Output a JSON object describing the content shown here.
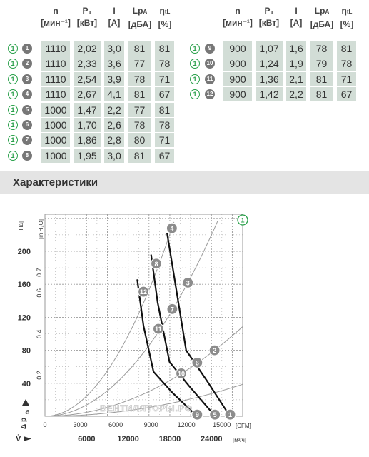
{
  "table": {
    "headers": {
      "n": {
        "top": "n",
        "bottom": "[мин⁻¹]"
      },
      "p1": {
        "top": "P₁",
        "bottom": "[кВт]"
      },
      "i": {
        "top": "I",
        "bottom": "[A]"
      },
      "lpa": {
        "top": "Lp",
        "sub": "A",
        "bottom": "[дБА]"
      },
      "eta": {
        "top": "η",
        "sub": "tL",
        "bottom": "[%]"
      }
    },
    "curve_set_label": "1",
    "left_rows": [
      {
        "point": "1",
        "n": "1110",
        "p1": "2,02",
        "i": "3,0",
        "lpa": "81",
        "eta": "81"
      },
      {
        "point": "2",
        "n": "1110",
        "p1": "2,33",
        "i": "3,6",
        "lpa": "77",
        "eta": "78"
      },
      {
        "point": "3",
        "n": "1110",
        "p1": "2,54",
        "i": "3,9",
        "lpa": "78",
        "eta": "71"
      },
      {
        "point": "4",
        "n": "1110",
        "p1": "2,67",
        "i": "4,1",
        "lpa": "81",
        "eta": "67"
      },
      {
        "point": "5",
        "n": "1000",
        "p1": "1,47",
        "i": "2,2",
        "lpa": "77",
        "eta": "81"
      },
      {
        "point": "6",
        "n": "1000",
        "p1": "1,70",
        "i": "2,6",
        "lpa": "78",
        "eta": "78"
      },
      {
        "point": "7",
        "n": "1000",
        "p1": "1,86",
        "i": "2,8",
        "lpa": "80",
        "eta": "71"
      },
      {
        "point": "8",
        "n": "1000",
        "p1": "1,95",
        "i": "3,0",
        "lpa": "81",
        "eta": "67"
      }
    ],
    "right_rows": [
      {
        "point": "9",
        "n": "900",
        "p1": "1,07",
        "i": "1,6",
        "lpa": "78",
        "eta": "81"
      },
      {
        "point": "10",
        "n": "900",
        "p1": "1,24",
        "i": "1,9",
        "lpa": "79",
        "eta": "78"
      },
      {
        "point": "11",
        "n": "900",
        "p1": "1,36",
        "i": "2,1",
        "lpa": "81",
        "eta": "71"
      },
      {
        "point": "12",
        "n": "900",
        "p1": "1,42",
        "i": "2,2",
        "lpa": "81",
        "eta": "67"
      }
    ]
  },
  "section": {
    "title": "Характеристики"
  },
  "chart": {
    "badge": "1",
    "unit_pa": "[Па]",
    "unit_inh2o": "[in H₂O]",
    "unit_cfm": "[CFM]",
    "unit_m3h": "[м³/ч]",
    "y_axis_label": "Δ p",
    "y_axis_sub": "fa",
    "x_axis_label": "V̇",
    "watermark": "ВЕНТИЛЯТОРЫ.РФ",
    "colors": {
      "grid": "#999999",
      "speed_line": "#111111",
      "system_curve": "#9a9a9a",
      "marker": "#8c8c8c",
      "badge": "#29a04a"
    }
  },
  "chart_data": {
    "type": "line",
    "title": "",
    "x_axis": {
      "unit": "м³/ч",
      "range": [
        0,
        28500
      ],
      "ticks": [
        6000,
        12000,
        18000,
        24000
      ]
    },
    "x_axis_secondary": {
      "unit": "CFM",
      "ticks": [
        0,
        3000,
        6000,
        9000,
        12000,
        15000
      ]
    },
    "y_axis": {
      "unit": "Па",
      "range": [
        0,
        245
      ],
      "ticks": [
        40,
        80,
        120,
        160,
        200
      ]
    },
    "y_axis_secondary": {
      "unit": "in H2O",
      "ticks": [
        0.2,
        0.4,
        0.6,
        0.7
      ]
    },
    "grid": true,
    "series": [
      {
        "name": "1110",
        "points": [
          [
            17600,
            222
          ],
          [
            18650,
            168
          ],
          [
            20350,
            80
          ],
          [
            23350,
            43
          ],
          [
            26600,
            1
          ]
        ]
      },
      {
        "name": "1000",
        "points": [
          [
            15300,
            196
          ],
          [
            16250,
            138
          ],
          [
            17950,
            66
          ],
          [
            20750,
            37
          ],
          [
            24450,
            1
          ]
        ]
      },
      {
        "name": "900",
        "points": [
          [
            13300,
            166
          ],
          [
            14200,
            110
          ],
          [
            15650,
            54
          ],
          [
            18450,
            28
          ],
          [
            21800,
            1
          ]
        ]
      }
    ],
    "operating_points": [
      {
        "label": "4",
        "x": 18300,
        "y": 228
      },
      {
        "label": "3",
        "x": 20600,
        "y": 162
      },
      {
        "label": "2",
        "x": 24450,
        "y": 80
      },
      {
        "label": "1",
        "x": 26700,
        "y": 2
      },
      {
        "label": "8",
        "x": 16050,
        "y": 185
      },
      {
        "label": "7",
        "x": 18350,
        "y": 130
      },
      {
        "label": "6",
        "x": 21950,
        "y": 65
      },
      {
        "label": "5",
        "x": 24500,
        "y": 2
      },
      {
        "label": "12",
        "x": 14200,
        "y": 151
      },
      {
        "label": "11",
        "x": 16350,
        "y": 106
      },
      {
        "label": "10",
        "x": 19650,
        "y": 52
      },
      {
        "label": "9",
        "x": 21950,
        "y": 2
      }
    ]
  }
}
